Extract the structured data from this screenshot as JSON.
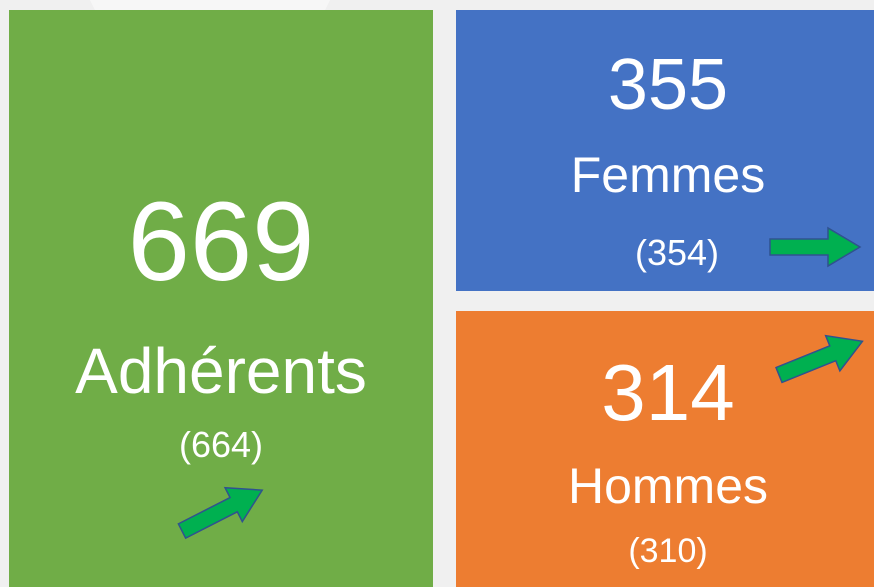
{
  "tiles": [
    {
      "value": 669,
      "label": "Adhérents",
      "previous": "(664)"
    },
    {
      "value": 355,
      "label": "Femmes",
      "previous": "(354)"
    },
    {
      "value": 314,
      "label": "Hommes",
      "previous": "(310)"
    }
  ]
}
